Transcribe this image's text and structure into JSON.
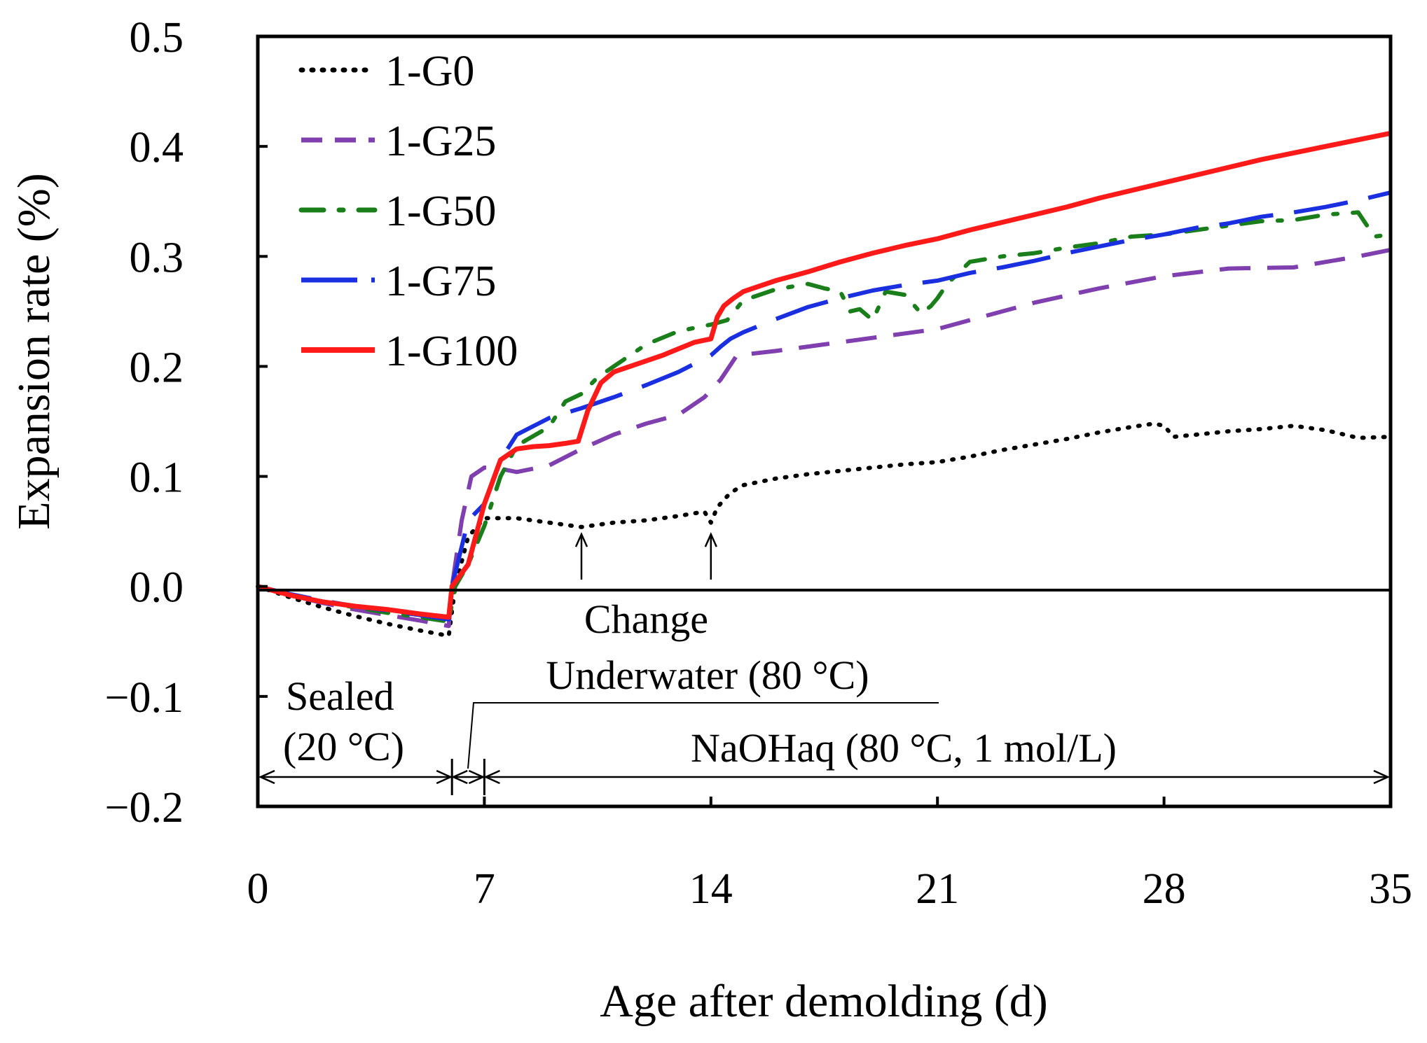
{
  "chart_data": {
    "type": "line",
    "title": "",
    "xlabel": "Age after demolding (d)",
    "ylabel": "Expansion rate (%)",
    "xlim": [
      0,
      35
    ],
    "ylim": [
      -0.2,
      0.5
    ],
    "x_ticks": [
      0,
      7,
      14,
      21,
      28,
      35
    ],
    "x_tick_labels": [
      "0",
      "7",
      "14",
      "21",
      "28",
      "35"
    ],
    "y_ticks": [
      -0.2,
      -0.1,
      0.0,
      0.1,
      0.2,
      0.3,
      0.4,
      0.5
    ],
    "y_tick_labels": [
      "−0.2",
      "−0.1",
      "0.0",
      "0.1",
      "0.2",
      "0.3",
      "0.4",
      "0.5"
    ],
    "legend_position": "top-left",
    "series": [
      {
        "name": "1-G0",
        "color": "#000000",
        "style": "dotted",
        "x": [
          0,
          1,
          2,
          3,
          4,
          5,
          5.9,
          6.1,
          6.5,
          7,
          8,
          9,
          10,
          11,
          12,
          13,
          13.8,
          14,
          14.2,
          14.6,
          15,
          16,
          17,
          18,
          19,
          20,
          21,
          22,
          23,
          24,
          25,
          26,
          27,
          27.7,
          28,
          28.3,
          29,
          30,
          31,
          32,
          33,
          34,
          35
        ],
        "values": [
          0.0,
          -0.01,
          -0.019,
          -0.027,
          -0.034,
          -0.04,
          -0.045,
          0.0,
          0.045,
          0.062,
          0.062,
          0.058,
          0.054,
          0.058,
          0.06,
          0.064,
          0.068,
          0.058,
          0.072,
          0.085,
          0.092,
          0.098,
          0.102,
          0.105,
          0.108,
          0.111,
          0.113,
          0.118,
          0.124,
          0.129,
          0.134,
          0.14,
          0.145,
          0.148,
          0.146,
          0.136,
          0.138,
          0.141,
          0.143,
          0.146,
          0.142,
          0.135,
          0.136
        ]
      },
      {
        "name": "1-G25",
        "color": "#7f3fae",
        "style": "dashed",
        "x": [
          0,
          1,
          2,
          3,
          4,
          5,
          5.9,
          6.0,
          6.3,
          6.6,
          7,
          7.5,
          8,
          9,
          10,
          11,
          12,
          13,
          13.8,
          14.3,
          14.8,
          16,
          18,
          20,
          21,
          22,
          24,
          26,
          28,
          30,
          32,
          34,
          35
        ],
        "values": [
          0.0,
          -0.008,
          -0.015,
          -0.021,
          -0.026,
          -0.031,
          -0.036,
          0.0,
          0.06,
          0.1,
          0.108,
          0.107,
          0.104,
          0.11,
          0.125,
          0.138,
          0.148,
          0.156,
          0.172,
          0.188,
          0.21,
          0.214,
          0.222,
          0.23,
          0.234,
          0.242,
          0.258,
          0.271,
          0.282,
          0.289,
          0.29,
          0.3,
          0.306
        ]
      },
      {
        "name": "1-G50",
        "color": "#1a7f1a",
        "style": "dashdot",
        "x": [
          0,
          1,
          2,
          3,
          4,
          5,
          5.9,
          6.1,
          6.5,
          7,
          7.5,
          8,
          9,
          9.5,
          10,
          10.5,
          11,
          12,
          13,
          14,
          14.5,
          15,
          16,
          17,
          17.5,
          18,
          18.3,
          18.6,
          19,
          19.4,
          20,
          20.5,
          20.8,
          21,
          21.3,
          22,
          23,
          24,
          25,
          26,
          27,
          28,
          29,
          30,
          31,
          32,
          33,
          34,
          34.5,
          35
        ],
        "values": [
          0.0,
          -0.008,
          -0.014,
          -0.019,
          -0.024,
          -0.028,
          -0.032,
          0.0,
          0.02,
          0.055,
          0.1,
          0.128,
          0.145,
          0.168,
          0.175,
          0.19,
          0.2,
          0.22,
          0.232,
          0.238,
          0.242,
          0.26,
          0.27,
          0.275,
          0.271,
          0.268,
          0.25,
          0.252,
          0.242,
          0.268,
          0.265,
          0.248,
          0.255,
          0.262,
          0.275,
          0.295,
          0.3,
          0.303,
          0.308,
          0.312,
          0.318,
          0.32,
          0.324,
          0.328,
          0.332,
          0.333,
          0.338,
          0.34,
          0.318,
          0.32
        ]
      },
      {
        "name": "1-G75",
        "color": "#1a2fe0",
        "style": "longdash",
        "x": [
          0,
          1,
          2,
          3,
          4,
          5,
          5.9,
          6.0,
          6.5,
          7,
          7.5,
          8,
          9,
          10,
          11,
          12,
          13,
          14,
          14.3,
          14.6,
          15,
          16,
          17,
          18,
          19,
          20,
          21,
          22,
          23,
          24,
          25,
          26,
          27,
          28,
          29,
          30,
          31,
          32,
          33,
          34,
          35
        ],
        "values": [
          0.0,
          -0.007,
          -0.013,
          -0.018,
          -0.022,
          -0.026,
          -0.03,
          0.0,
          0.06,
          0.075,
          0.115,
          0.138,
          0.153,
          0.162,
          0.172,
          0.183,
          0.195,
          0.21,
          0.218,
          0.225,
          0.231,
          0.243,
          0.254,
          0.262,
          0.269,
          0.274,
          0.278,
          0.285,
          0.29,
          0.296,
          0.303,
          0.309,
          0.315,
          0.32,
          0.326,
          0.33,
          0.336,
          0.34,
          0.345,
          0.351,
          0.358
        ]
      },
      {
        "name": "1-G100",
        "color": "#ff1a1a",
        "style": "solid",
        "x": [
          0,
          1,
          2,
          3,
          4,
          5,
          5.9,
          6.0,
          6.5,
          7,
          7.5,
          8,
          8.5,
          9,
          9.5,
          9.9,
          10.2,
          10.6,
          11,
          11.5,
          12,
          12.5,
          13,
          13.5,
          14,
          14.2,
          14.4,
          14.7,
          15,
          16,
          17,
          18,
          19,
          20,
          21,
          22,
          23,
          24,
          25,
          26,
          27,
          28,
          29,
          30,
          31,
          32,
          33,
          34,
          35
        ],
        "values": [
          0.0,
          -0.008,
          -0.014,
          -0.018,
          -0.021,
          -0.025,
          -0.028,
          0.0,
          0.02,
          0.075,
          0.115,
          0.125,
          0.127,
          0.128,
          0.13,
          0.132,
          0.16,
          0.185,
          0.195,
          0.2,
          0.205,
          0.21,
          0.216,
          0.222,
          0.225,
          0.245,
          0.255,
          0.262,
          0.268,
          0.278,
          0.286,
          0.295,
          0.303,
          0.31,
          0.316,
          0.324,
          0.331,
          0.338,
          0.345,
          0.353,
          0.36,
          0.367,
          0.374,
          0.381,
          0.388,
          0.394,
          0.4,
          0.406,
          0.412
        ]
      }
    ],
    "annotations": {
      "change_label": "Change",
      "change_points": [
        10,
        14
      ],
      "phase_sealed_line1": "Sealed",
      "phase_sealed_line2": "(20 °C)",
      "phase_underwater": "Underwater (80 °C)",
      "phase_naoh": "NaOHaq (80 °C, 1  mol/L)",
      "phase_boundaries_days": [
        6,
        7
      ]
    }
  }
}
